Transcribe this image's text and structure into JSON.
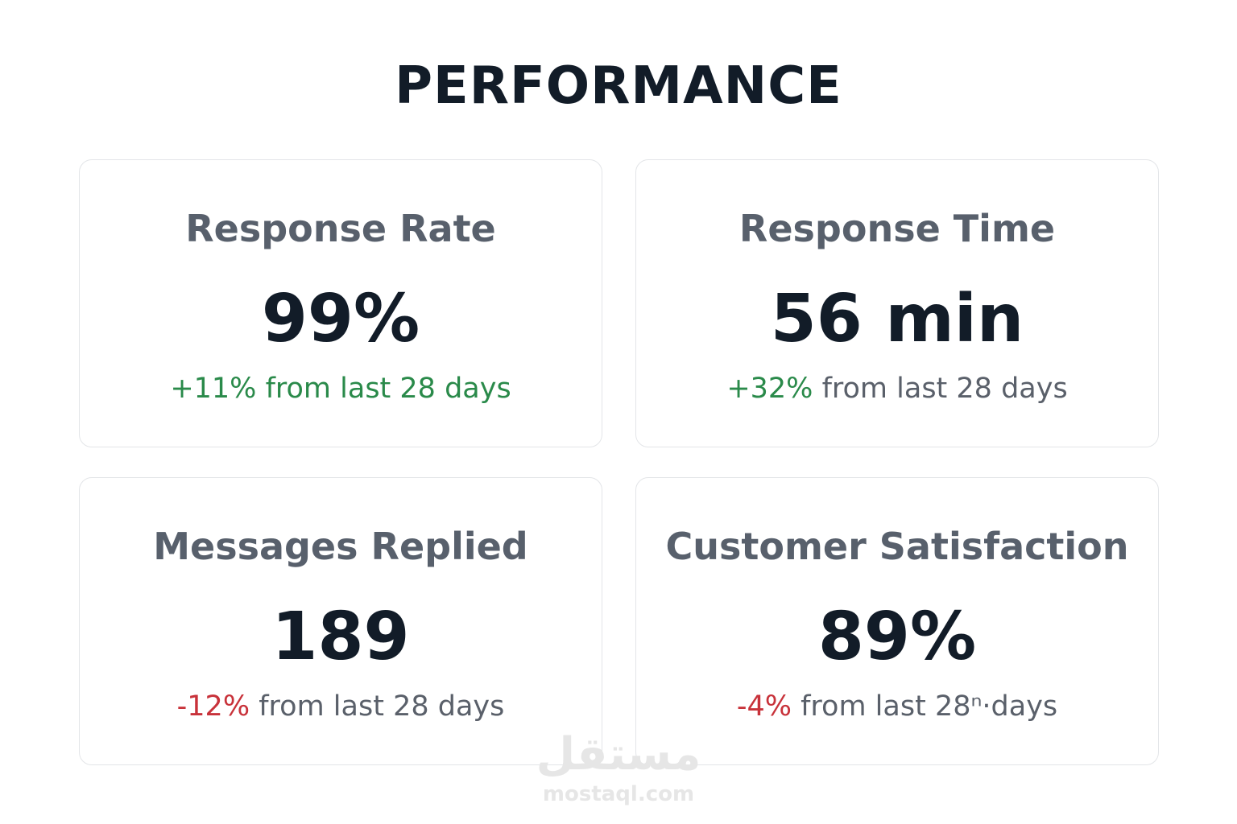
{
  "header": {
    "title": "PERFORMANCE"
  },
  "cards": [
    {
      "title": "Response Rate",
      "value": "99%",
      "change": "+11%",
      "period": "from last 28 days"
    },
    {
      "title": "Response Time",
      "value": "56 min",
      "change": "+32%",
      "period": "from last 28 days"
    },
    {
      "title": "Messages Replied",
      "value": "189",
      "change": "-12%",
      "period": "from last 28 days"
    },
    {
      "title": "Customer Satisfaction",
      "value": "89%",
      "change": "-4%",
      "period": "from last 28ⁿ·days"
    }
  ],
  "watermark": {
    "logo": "مستقل",
    "site": "mostaql.com"
  }
}
